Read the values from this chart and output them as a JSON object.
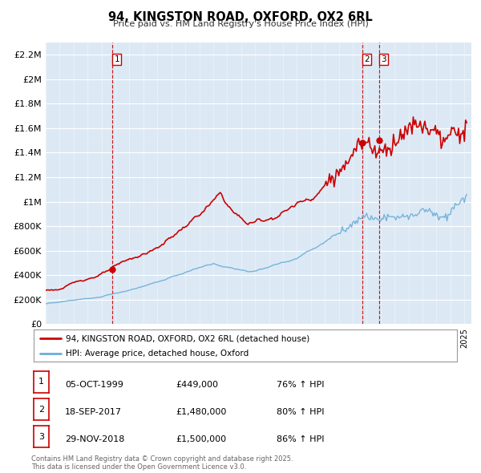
{
  "title": "94, KINGSTON ROAD, OXFORD, OX2 6RL",
  "subtitle": "Price paid vs. HM Land Registry's House Price Index (HPI)",
  "bg_color": "#dce9f5",
  "ylim": [
    0,
    2300000
  ],
  "yticks": [
    0,
    200000,
    400000,
    600000,
    800000,
    1000000,
    1200000,
    1400000,
    1600000,
    1800000,
    2000000,
    2200000
  ],
  "ytick_labels": [
    "£0",
    "£200K",
    "£400K",
    "£600K",
    "£800K",
    "£1M",
    "£1.2M",
    "£1.4M",
    "£1.6M",
    "£1.8M",
    "£2M",
    "£2.2M"
  ],
  "hpi_color": "#6baed6",
  "price_color": "#cc0000",
  "vline_color": "#cc0000",
  "sale_dates": [
    1999.79,
    2017.71,
    2018.92
  ],
  "sale_prices": [
    449000,
    1480000,
    1500000
  ],
  "sale_labels": [
    "1",
    "2",
    "3"
  ],
  "legend_price_label": "94, KINGSTON ROAD, OXFORD, OX2 6RL (detached house)",
  "legend_hpi_label": "HPI: Average price, detached house, Oxford",
  "table_rows": [
    {
      "num": "1",
      "date": "05-OCT-1999",
      "price": "£449,000",
      "hpi": "76% ↑ HPI"
    },
    {
      "num": "2",
      "date": "18-SEP-2017",
      "price": "£1,480,000",
      "hpi": "80% ↑ HPI"
    },
    {
      "num": "3",
      "date": "29-NOV-2018",
      "price": "£1,500,000",
      "hpi": "86% ↑ HPI"
    }
  ],
  "footnote": "Contains HM Land Registry data © Crown copyright and database right 2025.\nThis data is licensed under the Open Government Licence v3.0.",
  "xmin": 1995.0,
  "xmax": 2025.5
}
